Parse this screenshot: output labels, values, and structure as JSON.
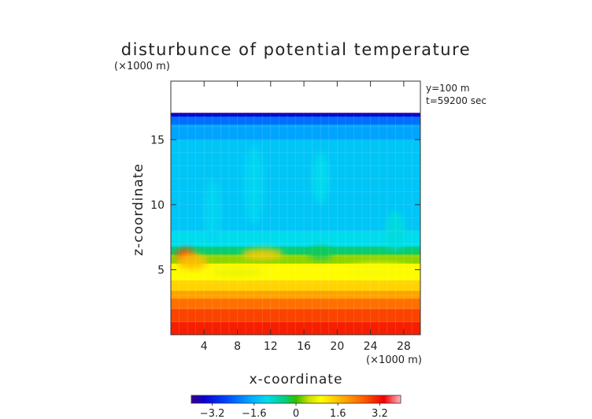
{
  "chart_data": {
    "type": "heatmap",
    "title": "disturbunce of potential temperature",
    "unit_label": "(×1000 m)",
    "annotations": [
      "y=100 m",
      "t=59200 sec"
    ],
    "xlabel": "x-coordinate",
    "ylabel": "z-coordinate",
    "x_unit_label": "(×1000 m)",
    "xlim": [
      0,
      30
    ],
    "ylim": [
      0,
      19.5
    ],
    "x_ticks": [
      4,
      8,
      12,
      16,
      20,
      24,
      28
    ],
    "y_ticks": [
      5,
      10,
      15
    ],
    "data_top_z": 17,
    "colorbar": {
      "range": [
        -4,
        4
      ],
      "ticks": [
        "−3.2",
        "−1.6",
        "0",
        "1.6",
        "3.2"
      ],
      "tick_values": [
        -3.2,
        -1.6,
        0,
        1.6,
        3.2
      ]
    },
    "field_bands": [
      {
        "z_from": 0.0,
        "z_to": 1.0,
        "value": 3.1
      },
      {
        "z_from": 1.0,
        "z_to": 2.0,
        "value": 2.8
      },
      {
        "z_from": 2.0,
        "z_to": 2.8,
        "value": 2.4
      },
      {
        "z_from": 2.8,
        "z_to": 3.4,
        "value": 1.9
      },
      {
        "z_from": 3.4,
        "z_to": 4.2,
        "value": 1.4
      },
      {
        "z_from": 4.2,
        "z_to": 5.5,
        "value": 1.0
      },
      {
        "z_from": 5.5,
        "z_to": 6.2,
        "value": 0.3
      },
      {
        "z_from": 6.2,
        "z_to": 6.8,
        "value": -0.4
      },
      {
        "z_from": 6.8,
        "z_to": 8.0,
        "value": -1.1
      },
      {
        "z_from": 8.0,
        "z_to": 15.0,
        "value": -1.4
      },
      {
        "z_from": 15.0,
        "z_to": 16.2,
        "value": -1.8
      },
      {
        "z_from": 16.2,
        "z_to": 16.8,
        "value": -2.3
      },
      {
        "z_from": 16.8,
        "z_to": 17.0,
        "value": -3.4
      }
    ],
    "field_features": [
      {
        "x": 1.8,
        "z": 6.1,
        "rx": 1.2,
        "rz": 0.55,
        "value": 2.8
      },
      {
        "x": 2.6,
        "z": 5.6,
        "rx": 1.8,
        "rz": 0.6,
        "value": 1.6
      },
      {
        "x": 11.0,
        "z": 6.2,
        "rx": 2.5,
        "rz": 0.4,
        "value": 1.5
      },
      {
        "x": 8.0,
        "z": 4.8,
        "rx": 3.0,
        "rz": 0.45,
        "value": 0.8
      },
      {
        "x": 25.0,
        "z": 5.0,
        "rx": 4.0,
        "rz": 0.5,
        "value": 0.9
      },
      {
        "x": 18.0,
        "z": 6.3,
        "rx": 1.5,
        "rz": 0.5,
        "value": -0.3
      },
      {
        "x": 5.0,
        "z": 9.5,
        "rx": 1.0,
        "rz": 2.5,
        "value": -1.2
      },
      {
        "x": 10.0,
        "z": 11.5,
        "rx": 1.2,
        "rz": 3.0,
        "value": -1.2
      },
      {
        "x": 18.0,
        "z": 12.0,
        "rx": 1.0,
        "rz": 2.0,
        "value": -1.1
      },
      {
        "x": 27.0,
        "z": 8.0,
        "rx": 1.2,
        "rz": 1.5,
        "value": -1.0
      }
    ]
  }
}
